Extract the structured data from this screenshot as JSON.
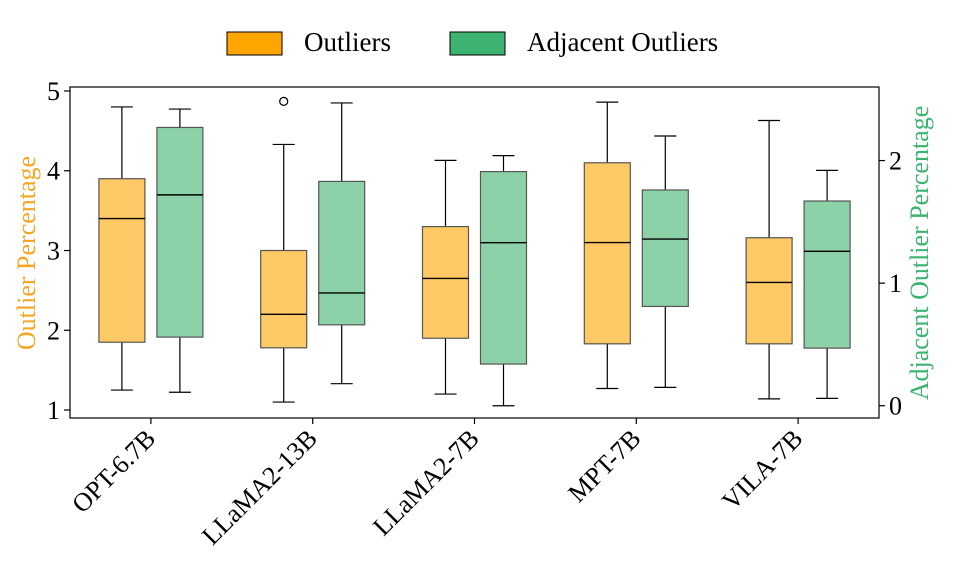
{
  "chart_data": {
    "type": "box",
    "categories": [
      "OPT-6.7B",
      "LLaMA2-13B",
      "LLaMA2-7B",
      "MPT-7B",
      "VILA-7B"
    ],
    "left_axis": {
      "label": "Outlier Percentage",
      "color": "#f5a623",
      "ylim": [
        0.9,
        5.05
      ],
      "ticks": [
        1,
        2,
        3,
        4,
        5
      ]
    },
    "right_axis": {
      "label": "Adjacent Outlier Percentage",
      "color": "#3cb371",
      "ylim": [
        -0.1,
        2.6
      ],
      "ticks": [
        0,
        1,
        2
      ]
    },
    "legend": {
      "position": "top-center",
      "entries": [
        {
          "label": "Outliers",
          "color": "#ffa500"
        },
        {
          "label": "Adjacent Outliers",
          "color": "#3cb371"
        }
      ]
    },
    "series": [
      {
        "name": "Outliers",
        "axis": "left",
        "fill": "#ffc966",
        "boxes": [
          {
            "whislo": 1.25,
            "q1": 1.85,
            "med": 3.4,
            "q3": 3.9,
            "whishi": 4.8,
            "fliers": []
          },
          {
            "whislo": 1.1,
            "q1": 1.78,
            "med": 2.2,
            "q3": 3.0,
            "whishi": 4.33,
            "fliers": [
              4.87
            ]
          },
          {
            "whislo": 1.2,
            "q1": 1.9,
            "med": 2.65,
            "q3": 3.3,
            "whishi": 4.13,
            "fliers": []
          },
          {
            "whislo": 1.27,
            "q1": 1.83,
            "med": 3.1,
            "q3": 4.1,
            "whishi": 4.86,
            "fliers": []
          },
          {
            "whislo": 1.14,
            "q1": 1.83,
            "med": 2.6,
            "q3": 3.16,
            "whishi": 4.63,
            "fliers": []
          }
        ]
      },
      {
        "name": "Adjacent Outliers",
        "axis": "right",
        "fill": "#8dd1a9",
        "boxes": [
          {
            "whislo": 0.11,
            "q1": 0.56,
            "med": 1.72,
            "q3": 2.27,
            "whishi": 2.42,
            "fliers": []
          },
          {
            "whislo": 0.18,
            "q1": 0.66,
            "med": 0.92,
            "q3": 1.83,
            "whishi": 2.47,
            "fliers": []
          },
          {
            "whislo": 0.0,
            "q1": 0.34,
            "med": 1.33,
            "q3": 1.91,
            "whishi": 2.04,
            "fliers": []
          },
          {
            "whislo": 0.15,
            "q1": 0.81,
            "med": 1.36,
            "q3": 1.76,
            "whishi": 2.2,
            "fliers": []
          },
          {
            "whislo": 0.06,
            "q1": 0.47,
            "med": 1.26,
            "q3": 1.67,
            "whishi": 1.92,
            "fliers": []
          }
        ]
      }
    ]
  }
}
